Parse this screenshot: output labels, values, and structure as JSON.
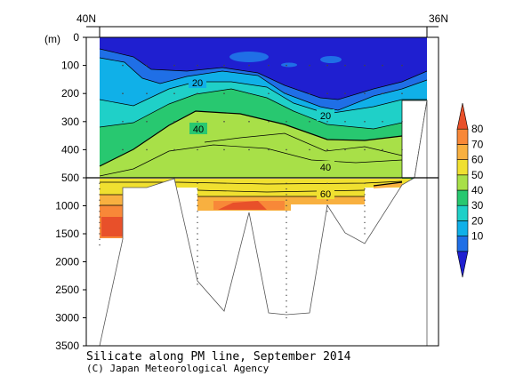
{
  "chart_data": {
    "type": "contour",
    "title": "Silicate along PM line, September 2014",
    "credit": "(C) Japan Meteorological Agency",
    "x_top_labels": [
      "40N",
      "36N"
    ],
    "y_unit_label": "(m)",
    "y_ticks_upper": [
      "0",
      "100",
      "200",
      "300",
      "400",
      "500"
    ],
    "y_ticks_lower": [
      "1000",
      "1500",
      "2000",
      "2500",
      "3000",
      "3500"
    ],
    "y_axis_split_depth": 500,
    "ylim": [
      3500,
      0
    ],
    "colorbar": {
      "ticks": [
        "80",
        "70",
        "60",
        "50",
        "40",
        "30",
        "20",
        "10"
      ],
      "colors": [
        "#1f1fd0",
        "#1f6fe6",
        "#10b0e8",
        "#1fd0c8",
        "#28c870",
        "#a8e048",
        "#f0e030",
        "#f8b040",
        "#f88838",
        "#e8502a"
      ]
    },
    "contour_labels": [
      "20",
      "20",
      "40",
      "40",
      "60"
    ]
  }
}
